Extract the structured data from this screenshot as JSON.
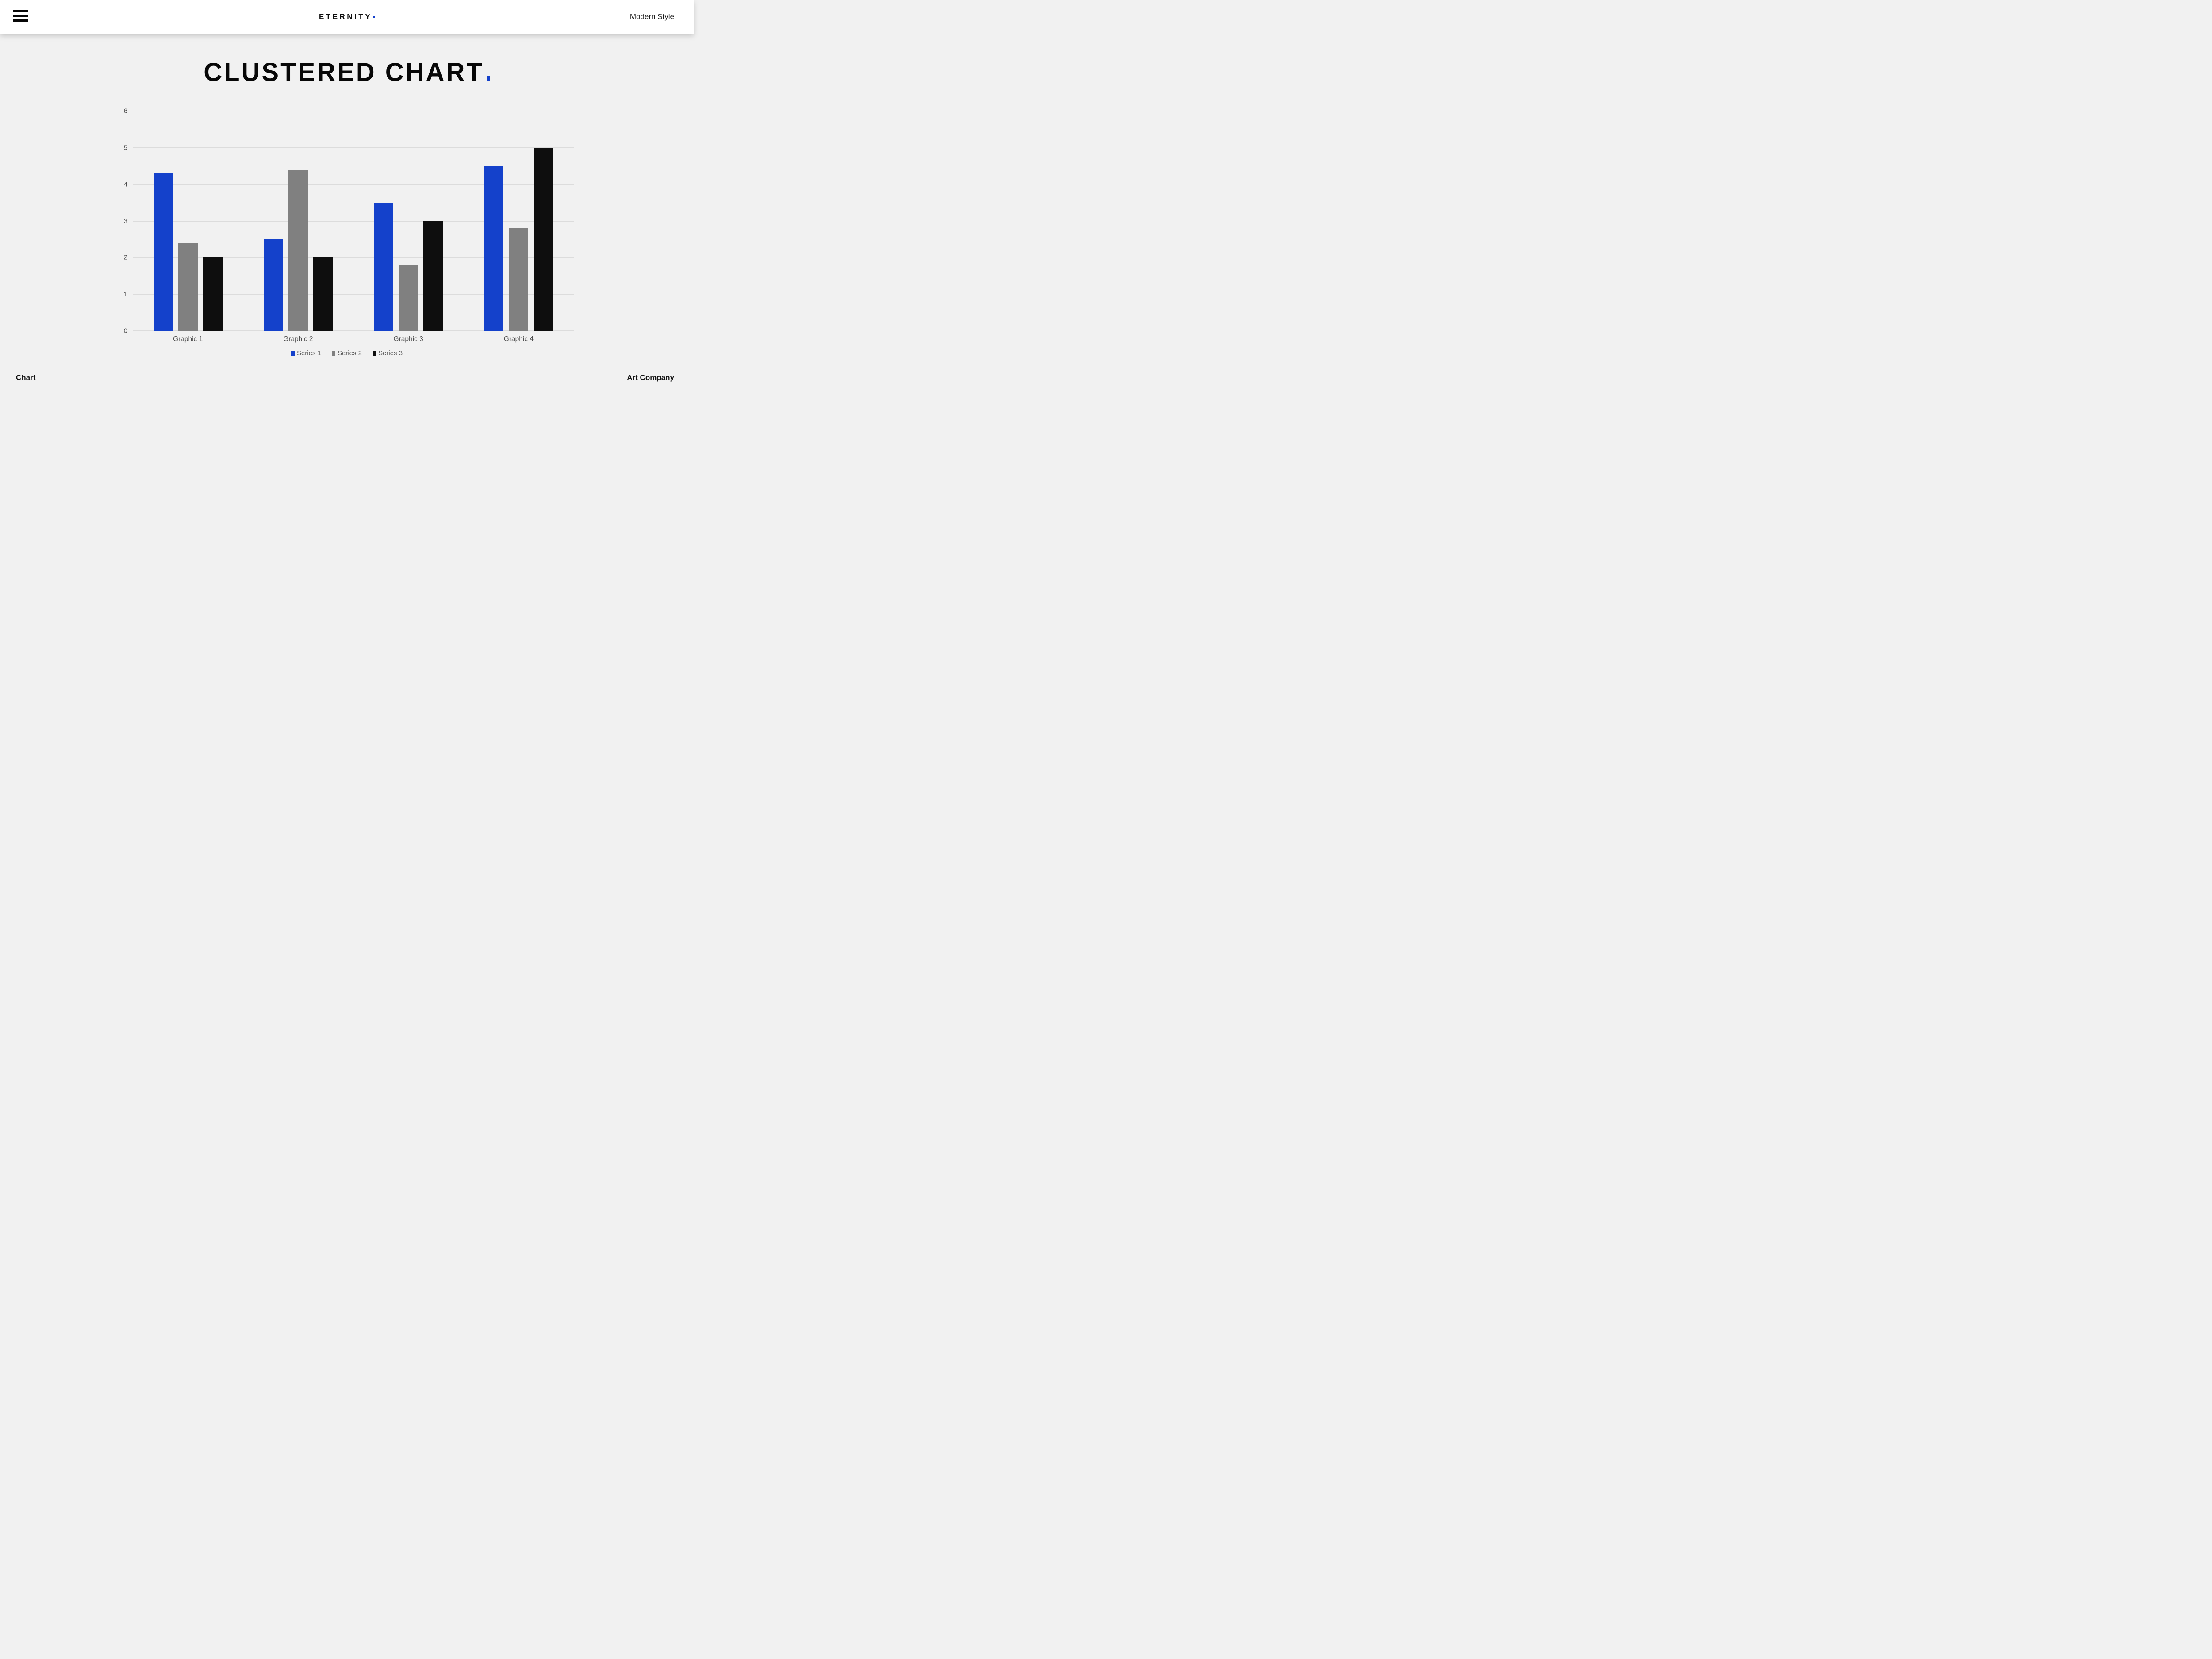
{
  "header": {
    "logo_text": "ETERNITY",
    "logo_dot": ".",
    "right_label": "Modern Style"
  },
  "title": {
    "text": "CLUSTERED CHART",
    "dot": "."
  },
  "chart_data": {
    "type": "bar",
    "categories": [
      "Graphic 1",
      "Graphic 2",
      "Graphic 3",
      "Graphic 4"
    ],
    "series": [
      {
        "name": "Series 1",
        "color": "#1441CB",
        "values": [
          4.3,
          2.5,
          3.5,
          4.5
        ]
      },
      {
        "name": "Series 2",
        "color": "#808080",
        "values": [
          2.4,
          4.4,
          1.8,
          2.8
        ]
      },
      {
        "name": "Series 3",
        "color": "#0E0E0E",
        "values": [
          2.0,
          2.0,
          3.0,
          5.0
        ]
      }
    ],
    "ylim": [
      0,
      6
    ],
    "yticks": [
      0,
      1,
      2,
      3,
      4,
      5,
      6
    ],
    "grid": true,
    "legend_position": "bottom"
  },
  "footer": {
    "left": "Chart",
    "right": "Art Company"
  },
  "colors": {
    "accent": "#1441CB",
    "background": "#F1F1F1",
    "header_bg": "#FFFFFF",
    "grid": "#DCDCDC",
    "axis_text": "#4D4D4D",
    "legend_text": "#595959",
    "bar_gray": "#808080",
    "bar_black": "#0E0E0E",
    "text_dark": "#141414"
  }
}
